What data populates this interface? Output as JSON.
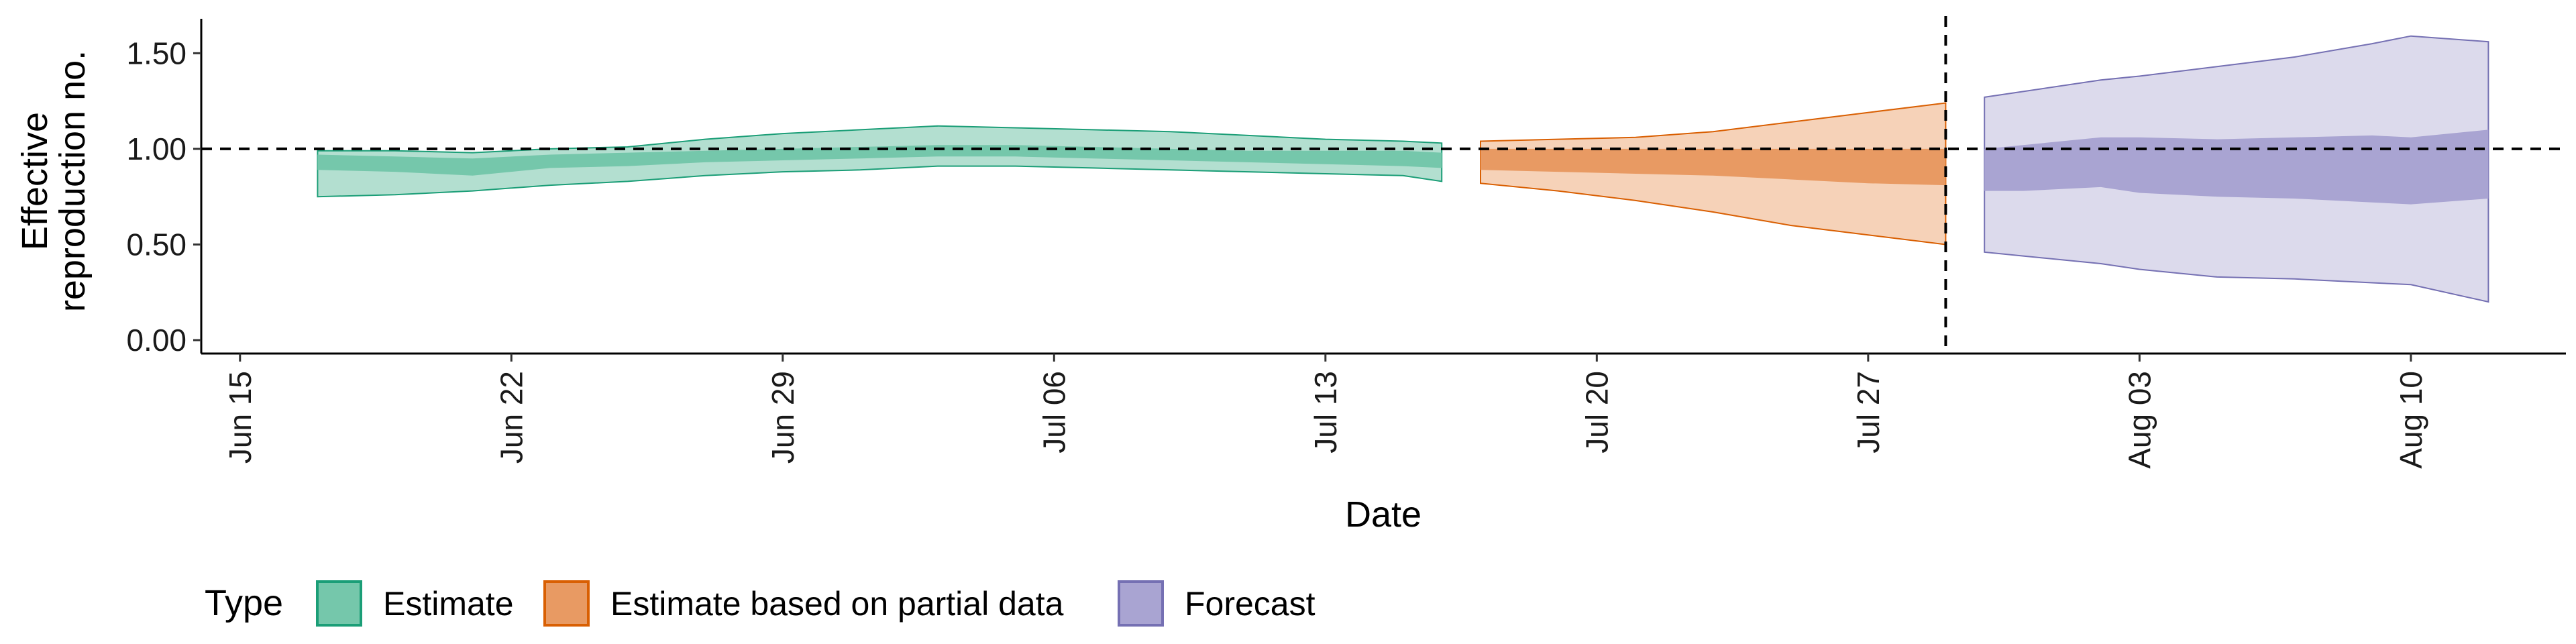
{
  "chart_data": {
    "type": "area",
    "xlabel": "Date",
    "ylabel_lines": [
      "Effective",
      "reproduction no."
    ],
    "x_ticks": [
      "Jun 15",
      "Jun 22",
      "Jun 29",
      "Jul 06",
      "Jul 13",
      "Jul 20",
      "Jul 27",
      "Aug 03",
      "Aug 10"
    ],
    "x_tick_dates": [
      "2020-06-15",
      "2020-06-22",
      "2020-06-29",
      "2020-07-06",
      "2020-07-13",
      "2020-07-20",
      "2020-07-27",
      "2020-08-03",
      "2020-08-10"
    ],
    "x_range": [
      "2020-06-14",
      "2020-08-14"
    ],
    "y_ticks": [
      "0.00",
      "0.50",
      "1.00",
      "1.50"
    ],
    "ylim": [
      -0.07,
      1.68
    ],
    "reference_line": {
      "y": 1.0,
      "style": "dashed"
    },
    "vertical_line": {
      "x": "2020-07-29",
      "style": "dashed"
    },
    "grid": false,
    "legend": {
      "title": "Type",
      "position": "bottom",
      "items": [
        "Estimate",
        "Estimate based on partial data",
        "Forecast"
      ]
    },
    "series": [
      {
        "name": "Estimate",
        "fill_outer": "#b3dfd0",
        "fill_inner": "#75c7ab",
        "stroke": "#1b9e77",
        "x": [
          "2020-06-17",
          "2020-06-19",
          "2020-06-21",
          "2020-06-23",
          "2020-06-25",
          "2020-06-27",
          "2020-06-29",
          "2020-07-01",
          "2020-07-03",
          "2020-07-05",
          "2020-07-07",
          "2020-07-09",
          "2020-07-11",
          "2020-07-13",
          "2020-07-15",
          "2020-07-16"
        ],
        "outer_upper": [
          0.99,
          0.99,
          0.98,
          1.0,
          1.01,
          1.05,
          1.08,
          1.1,
          1.12,
          1.11,
          1.1,
          1.09,
          1.07,
          1.05,
          1.04,
          1.03
        ],
        "inner_upper": [
          0.97,
          0.96,
          0.95,
          0.97,
          0.98,
          0.99,
          1.0,
          1.01,
          1.02,
          1.02,
          1.01,
          1.0,
          0.99,
          0.99,
          0.99,
          0.98
        ],
        "inner_lower": [
          0.89,
          0.88,
          0.86,
          0.9,
          0.91,
          0.93,
          0.94,
          0.95,
          0.96,
          0.96,
          0.95,
          0.94,
          0.93,
          0.92,
          0.91,
          0.9
        ],
        "outer_lower": [
          0.75,
          0.76,
          0.78,
          0.81,
          0.83,
          0.86,
          0.88,
          0.89,
          0.91,
          0.91,
          0.9,
          0.89,
          0.88,
          0.87,
          0.86,
          0.83
        ]
      },
      {
        "name": "Estimate based on partial data",
        "fill_outer": "#f6d2b8",
        "fill_inner": "#e89a63",
        "stroke": "#d95f02",
        "x": [
          "2020-07-17",
          "2020-07-19",
          "2020-07-21",
          "2020-07-23",
          "2020-07-25",
          "2020-07-27",
          "2020-07-29"
        ],
        "outer_upper": [
          1.04,
          1.05,
          1.06,
          1.09,
          1.14,
          1.19,
          1.24
        ],
        "inner_upper": [
          1.0,
          1.0,
          1.0,
          1.0,
          1.0,
          1.0,
          1.0
        ],
        "inner_lower": [
          0.89,
          0.88,
          0.87,
          0.86,
          0.84,
          0.82,
          0.81
        ],
        "outer_lower": [
          0.82,
          0.78,
          0.73,
          0.67,
          0.6,
          0.55,
          0.5
        ]
      },
      {
        "name": "Forecast",
        "fill_outer": "#dcdaec",
        "fill_inner": "#a9a4d2",
        "stroke": "#7570b3",
        "x": [
          "2020-07-30",
          "2020-07-31",
          "2020-08-02",
          "2020-08-03",
          "2020-08-05",
          "2020-08-07",
          "2020-08-09",
          "2020-08-10",
          "2020-08-12"
        ],
        "outer_upper": [
          1.27,
          1.3,
          1.36,
          1.38,
          1.43,
          1.48,
          1.55,
          1.59,
          1.56
        ],
        "inner_upper": [
          1.0,
          1.02,
          1.06,
          1.06,
          1.05,
          1.06,
          1.07,
          1.06,
          1.1
        ],
        "inner_lower": [
          0.78,
          0.78,
          0.8,
          0.77,
          0.75,
          0.74,
          0.72,
          0.71,
          0.74
        ],
        "outer_lower": [
          0.46,
          0.44,
          0.4,
          0.37,
          0.33,
          0.32,
          0.3,
          0.29,
          0.2
        ]
      }
    ]
  }
}
